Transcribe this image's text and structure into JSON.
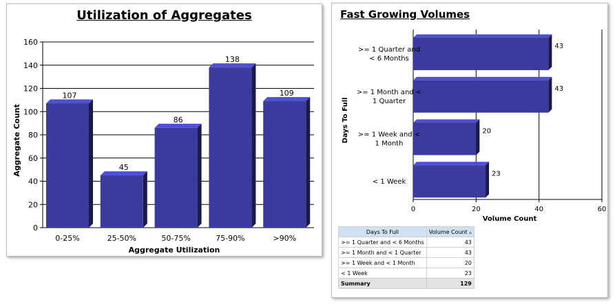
{
  "chart_data": [
    {
      "type": "bar",
      "title": "Utilization of Aggregates",
      "xlabel": "Aggregate Utilization",
      "ylabel": "Aggregate Count",
      "categories": [
        "0-25%",
        "25-50%",
        "50-75%",
        "75-90%",
        ">90%"
      ],
      "values": [
        107,
        45,
        86,
        138,
        109
      ],
      "ylim": [
        0,
        160
      ],
      "yticks": [
        0,
        20,
        40,
        60,
        80,
        100,
        120,
        140,
        160
      ],
      "grid": true,
      "bar_color": "#3b3b9e"
    },
    {
      "type": "bar",
      "orientation": "horizontal",
      "title": "Fast Growing Volumes",
      "xlabel": "Volume Count",
      "ylabel": "Days To Full",
      "categories": [
        [
          ">= 1 Quarter and",
          "< 6 Months"
        ],
        [
          ">= 1 Month and <",
          "1 Quarter"
        ],
        [
          ">= 1 Week and <",
          "1 Month"
        ],
        [
          "< 1 Week"
        ]
      ],
      "values": [
        43,
        43,
        20,
        23
      ],
      "xlim": [
        0,
        60
      ],
      "xticks": [
        "0",
        "20",
        "40",
        "60"
      ],
      "grid": true,
      "bar_color": "#3b3b9e"
    }
  ],
  "table": {
    "headers": [
      "Days To Full",
      "Volume Count"
    ],
    "sort_icon": "▵",
    "rows": [
      [
        ">= 1 Quarter and < 6 Months",
        "43"
      ],
      [
        ">= 1 Month and < 1 Quarter",
        "43"
      ],
      [
        ">= 1 Week and < 1 Month",
        "20"
      ],
      [
        "< 1 Week",
        "23"
      ]
    ],
    "summary": [
      "Summary",
      "129"
    ]
  }
}
